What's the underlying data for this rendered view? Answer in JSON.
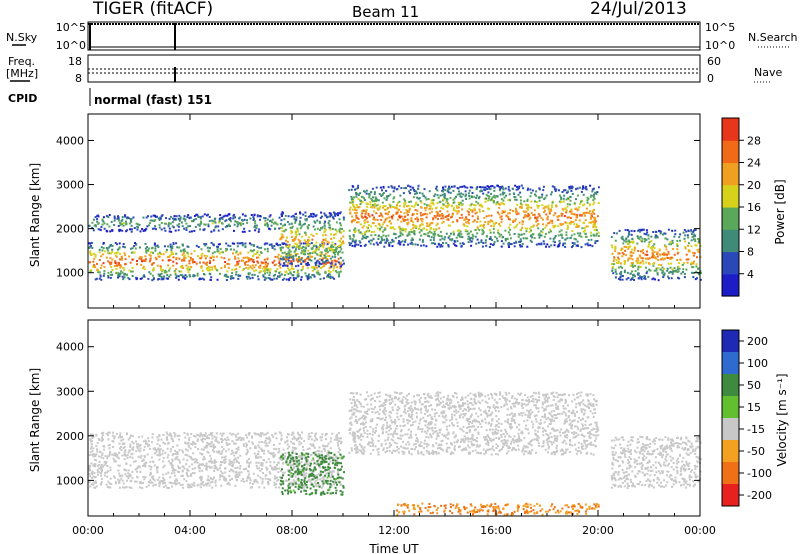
{
  "header": {
    "station": "TIGER (fitACF)",
    "beam": "Beam 11",
    "date": "24/Jul/2013"
  },
  "strips": {
    "nsky_label": "N.Sky",
    "nsky_ticks": [
      "10^5",
      "10^0"
    ],
    "nsearch_label": "N.Search",
    "nsearch_ticks": [
      "10^5",
      "10^0"
    ],
    "freq_label_1": "Freq.",
    "freq_label_2": "[MHz]",
    "freq_ticks": [
      "18",
      "8"
    ],
    "nave_label": "Nave",
    "nave_ticks": [
      "60",
      "0"
    ],
    "cpid_label": "CPID",
    "cpid_value": "normal (fast) 151"
  },
  "chart_data": [
    {
      "type": "heatmap",
      "quantity": "power",
      "ylabel": "Slant Range [km]",
      "y_ticks": [
        1000,
        2000,
        3000,
        4000
      ],
      "ylim": [
        200,
        4600
      ],
      "x_ticks": [
        "00:00",
        "04:00",
        "08:00",
        "12:00",
        "16:00",
        "20:00",
        "00:00"
      ],
      "xlim_hours": [
        0,
        24
      ],
      "colorbar": {
        "label": "Power [dB]",
        "ticks": [
          4,
          8,
          12,
          16,
          20,
          24,
          28
        ],
        "colors": [
          "#1d1dc8",
          "#2b48b8",
          "#3f8a78",
          "#5aa85a",
          "#d6d21c",
          "#f0a020",
          "#f06a18",
          "#e8361a"
        ]
      },
      "regions": [
        {
          "t0": 0.0,
          "t1": 9.9,
          "r0": 850,
          "r1": 1700,
          "peak_dB": 28
        },
        {
          "t0": 0.0,
          "t1": 7.5,
          "r0": 1950,
          "r1": 2350,
          "peak_dB": 14
        },
        {
          "t0": 7.5,
          "t1": 10.0,
          "r0": 1150,
          "r1": 2400,
          "peak_dB": 22
        },
        {
          "t0": 10.2,
          "t1": 20.0,
          "r0": 1600,
          "r1": 3000,
          "peak_dB": 26
        },
        {
          "t0": 20.5,
          "t1": 24.0,
          "r0": 850,
          "r1": 2000,
          "peak_dB": 26
        }
      ]
    },
    {
      "type": "heatmap",
      "quantity": "velocity",
      "ylabel": "Slant Range [km]",
      "y_ticks": [
        1000,
        2000,
        3000,
        4000
      ],
      "ylim": [
        200,
        4600
      ],
      "x_ticks": [
        "00:00",
        "04:00",
        "08:00",
        "12:00",
        "16:00",
        "20:00",
        "00:00"
      ],
      "xlim_hours": [
        0,
        24
      ],
      "xlabel": "Time UT",
      "colorbar": {
        "label": "Velocity [m s⁻¹]",
        "ticks": [
          200,
          100,
          50,
          15,
          -15,
          -50,
          -100,
          -200
        ],
        "colors": [
          "#1e2ab4",
          "#2e6ad0",
          "#3e8a3e",
          "#62c030",
          "#c8c8c8",
          "#f4a020",
          "#f07018",
          "#e82020"
        ]
      },
      "regions": [
        {
          "t0": 0.0,
          "t1": 9.9,
          "r0": 850,
          "r1": 2100,
          "velocity": 0
        },
        {
          "t0": 7.5,
          "t1": 10.0,
          "r0": 700,
          "r1": 1650,
          "velocity": 60
        },
        {
          "t0": 10.2,
          "t1": 20.0,
          "r0": 1600,
          "r1": 3000,
          "velocity": 0
        },
        {
          "t0": 20.5,
          "t1": 24.0,
          "r0": 850,
          "r1": 2000,
          "velocity": 0
        },
        {
          "t0": 12.0,
          "t1": 20.0,
          "r0": 250,
          "r1": 500,
          "velocity": -50
        }
      ]
    }
  ]
}
